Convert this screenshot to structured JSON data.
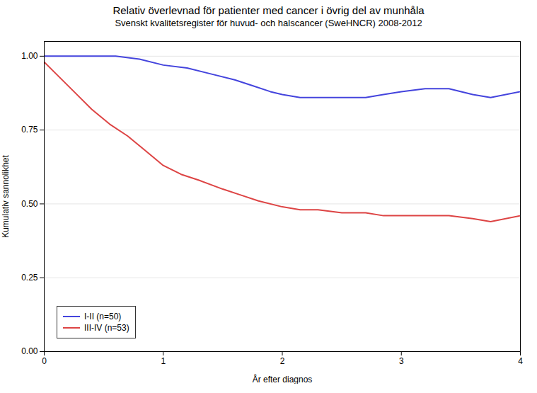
{
  "chart_data": {
    "type": "line",
    "title": "Relativ överlevnad för patienter med cancer i övrig del av munhåla",
    "subtitle": "Svenskt kvalitetsregister för huvud- och halscancer (SweHNCR) 2008-2012",
    "xlabel": "År efter diagnos",
    "ylabel": "Kumulativ sannolikhet",
    "xlim": [
      0,
      4
    ],
    "ylim": [
      0,
      1.05
    ],
    "xticks": [
      0,
      1,
      2,
      3,
      4
    ],
    "yticks": [
      {
        "value": 0,
        "label": "0.00"
      },
      {
        "value": 0.25,
        "label": "0.25"
      },
      {
        "value": 0.5,
        "label": "0.50"
      },
      {
        "value": 0.75,
        "label": "0.75"
      },
      {
        "value": 1,
        "label": "1.00"
      }
    ],
    "grid": "y",
    "legend": "lower left",
    "series": [
      {
        "name": "I-II (n=50)",
        "color": "#4444dd",
        "x": [
          0.0,
          0.15,
          0.35,
          0.6,
          0.8,
          1.0,
          1.2,
          1.4,
          1.6,
          1.75,
          1.9,
          2.0,
          2.15,
          2.3,
          2.5,
          2.7,
          2.85,
          3.0,
          3.2,
          3.4,
          3.6,
          3.75,
          4.0
        ],
        "values": [
          1.0,
          1.0,
          1.0,
          1.0,
          0.99,
          0.97,
          0.96,
          0.94,
          0.92,
          0.9,
          0.88,
          0.87,
          0.86,
          0.86,
          0.86,
          0.86,
          0.87,
          0.88,
          0.89,
          0.89,
          0.87,
          0.86,
          0.88
        ]
      },
      {
        "name": "III-IV (n=53)",
        "color": "#dd4444",
        "x": [
          0.0,
          0.1,
          0.25,
          0.4,
          0.55,
          0.7,
          0.85,
          1.0,
          1.15,
          1.3,
          1.5,
          1.65,
          1.8,
          2.0,
          2.15,
          2.3,
          2.5,
          2.7,
          2.85,
          3.0,
          3.2,
          3.4,
          3.6,
          3.75,
          4.0
        ],
        "values": [
          0.98,
          0.94,
          0.88,
          0.82,
          0.77,
          0.73,
          0.68,
          0.63,
          0.6,
          0.58,
          0.55,
          0.53,
          0.51,
          0.49,
          0.48,
          0.48,
          0.47,
          0.47,
          0.46,
          0.46,
          0.46,
          0.46,
          0.45,
          0.44,
          0.46
        ]
      }
    ]
  }
}
